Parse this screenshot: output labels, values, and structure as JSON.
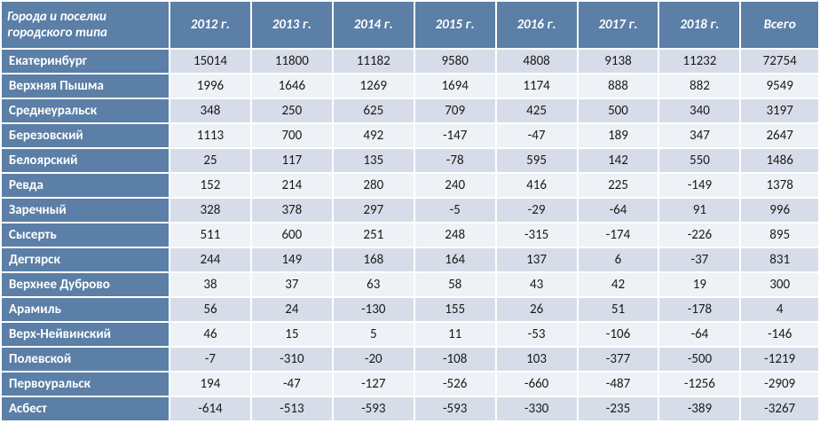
{
  "table": {
    "type": "table",
    "header_bg": "#5b7fa6",
    "header_color": "#ffffff",
    "row_label_bg": "#5b7fa6",
    "row_label_color": "#ffffff",
    "odd_row_bg": "#d7dde8",
    "even_row_bg": "#eef1f6",
    "cell_color": "#1a1a1a",
    "border_color": "#ffffff",
    "font_family": "Calibri",
    "header_fontsize": 15,
    "cell_fontsize": 15,
    "columns": [
      "Города и поселки городского типа",
      "2012 г.",
      "2013 г.",
      "2014 г.",
      "2015 г.",
      "2016 г.",
      "2017 г.",
      "2018 г.",
      "Всего"
    ],
    "rows": [
      {
        "label": "Екатеринбург",
        "values": [
          "15014",
          "11800",
          "11182",
          "9580",
          "4808",
          "9138",
          "11232",
          "72754"
        ]
      },
      {
        "label": "Верхняя Пышма",
        "values": [
          "1996",
          "1646",
          "1269",
          "1694",
          "1174",
          "888",
          "882",
          "9549"
        ]
      },
      {
        "label": "Среднеуральск",
        "values": [
          "348",
          "250",
          "625",
          "709",
          "425",
          "500",
          "340",
          "3197"
        ]
      },
      {
        "label": "Березовский",
        "values": [
          "1113",
          "700",
          "492",
          "-147",
          "-47",
          "189",
          "347",
          "2647"
        ]
      },
      {
        "label": "Белоярский",
        "values": [
          "25",
          "117",
          "135",
          "-78",
          "595",
          "142",
          "550",
          "1486"
        ]
      },
      {
        "label": "Ревда",
        "values": [
          "152",
          "214",
          "280",
          "240",
          "416",
          "225",
          "-149",
          "1378"
        ]
      },
      {
        "label": "Заречный",
        "values": [
          "328",
          "378",
          "297",
          "-5",
          "-29",
          "-64",
          "91",
          "996"
        ]
      },
      {
        "label": "Сысерть",
        "values": [
          "511",
          "600",
          "251",
          "248",
          "-315",
          "-174",
          "-226",
          "895"
        ]
      },
      {
        "label": "Дегтярск",
        "values": [
          "244",
          "149",
          "168",
          "164",
          "137",
          "6",
          "-37",
          "831"
        ]
      },
      {
        "label": "Верхнее Дуброво",
        "values": [
          "38",
          "37",
          "63",
          "58",
          "43",
          "42",
          "19",
          "300"
        ]
      },
      {
        "label": "Арамиль",
        "values": [
          "56",
          "24",
          "-130",
          "155",
          "26",
          "51",
          "-178",
          "4"
        ]
      },
      {
        "label": "Верх-Нейвинский",
        "values": [
          "46",
          "15",
          "5",
          "11",
          "-53",
          "-106",
          "-64",
          "-146"
        ]
      },
      {
        "label": "Полевской",
        "values": [
          "-7",
          "-310",
          "-20",
          "-108",
          "103",
          "-377",
          "-500",
          "-1219"
        ]
      },
      {
        "label": "Первоуральск",
        "values": [
          "194",
          "-47",
          "-127",
          "-526",
          "-660",
          "-487",
          "-1256",
          "-2909"
        ]
      },
      {
        "label": "Асбест",
        "values": [
          "-614",
          "-513",
          "-593",
          "-593",
          "-330",
          "-235",
          "-389",
          "-3267"
        ]
      }
    ]
  }
}
